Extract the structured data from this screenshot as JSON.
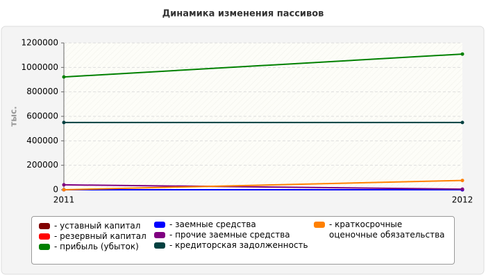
{
  "chart_data": {
    "type": "line",
    "title": "Динамика изменения пассивов",
    "ylabel": "тыс.",
    "categories": [
      "2011",
      "2012"
    ],
    "series": [
      {
        "name": "- уставный капитал",
        "color": "#800000",
        "values": [
          0,
          0
        ]
      },
      {
        "name": "- резервный капитал",
        "color": "#ff0000",
        "values": [
          0,
          0
        ]
      },
      {
        "name": "- прибыль (убыток)",
        "color": "#008000",
        "values": [
          922000,
          1109000
        ]
      },
      {
        "name": "- заемные средства",
        "color": "#0000ff",
        "values": [
          0,
          0
        ]
      },
      {
        "name": "- прочие заемные средства",
        "color": "#800080",
        "values": [
          40000,
          5000
        ]
      },
      {
        "name": "- кредиторская задолженность",
        "color": "#004040",
        "values": [
          550000,
          550000
        ]
      },
      {
        "name": "- краткосрочные оценочные обязательства",
        "color": "#ff8000",
        "values": [
          0,
          76000
        ]
      }
    ],
    "ylim": [
      0,
      1200000
    ],
    "yticks": [
      0,
      200000,
      400000,
      600000,
      800000,
      1000000,
      1200000
    ],
    "grid": true
  }
}
